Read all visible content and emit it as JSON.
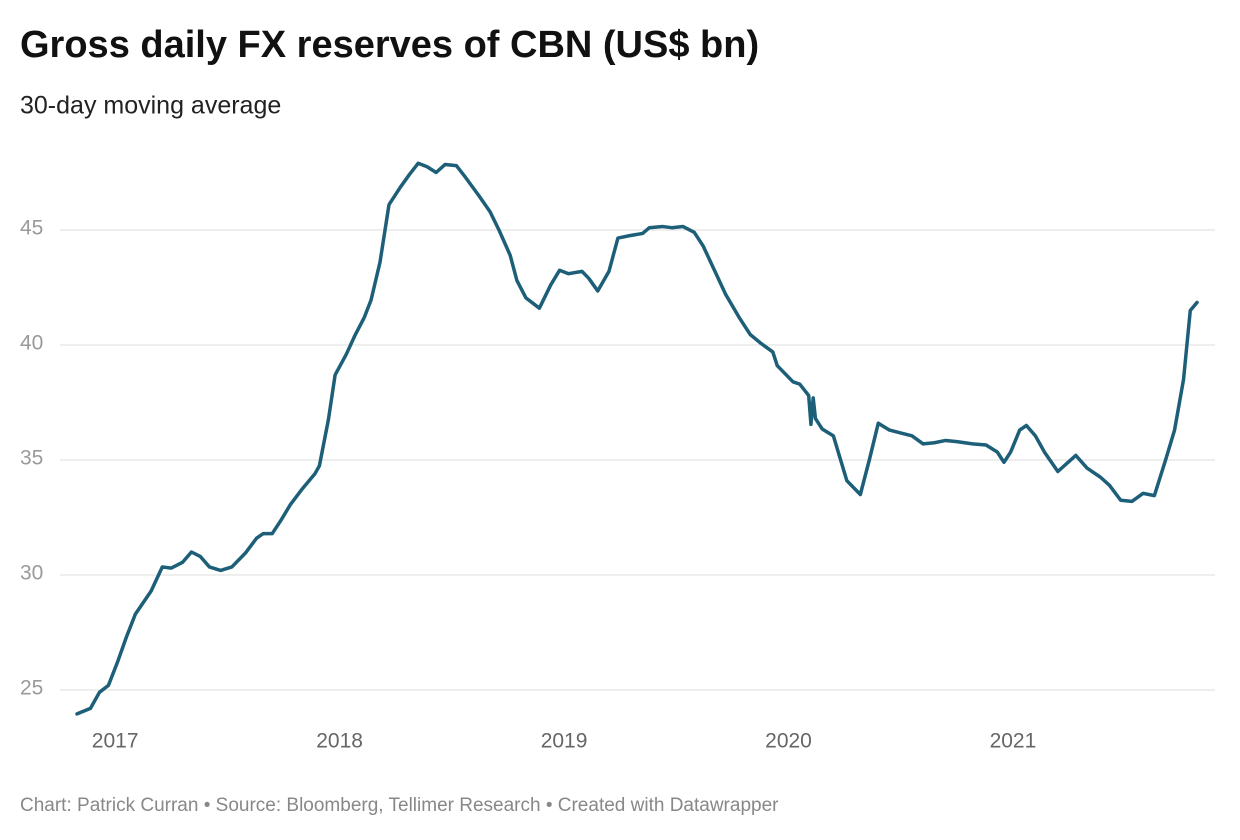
{
  "chart_data": {
    "type": "line",
    "title": "Gross daily FX reserves of CBN (US$ bn)",
    "subtitle": "30-day moving average",
    "source": "Chart: Patrick Curran • Source: Bloomberg, Tellimer Research • Created with Datawrapper",
    "x": [
      2016.83,
      2016.89,
      2016.93,
      2016.97,
      2017.01,
      2017.05,
      2017.09,
      2017.16,
      2017.21,
      2017.25,
      2017.3,
      2017.34,
      2017.38,
      2017.42,
      2017.47,
      2017.52,
      2017.58,
      2017.63,
      2017.66,
      2017.7,
      2017.74,
      2017.78,
      2017.83,
      2017.89,
      2017.91,
      2017.95,
      2017.98,
      2018.03,
      2018.07,
      2018.11,
      2018.14,
      2018.18,
      2018.22,
      2018.27,
      2018.31,
      2018.35,
      2018.39,
      2018.43,
      2018.47,
      2018.52,
      2018.56,
      2018.62,
      2018.67,
      2018.71,
      2018.76,
      2018.79,
      2018.83,
      2018.89,
      2018.94,
      2018.98,
      2019.02,
      2019.08,
      2019.11,
      2019.15,
      2019.2,
      2019.24,
      2019.29,
      2019.35,
      2019.38,
      2019.44,
      2019.48,
      2019.53,
      2019.58,
      2019.62,
      2019.67,
      2019.72,
      2019.78,
      2019.83,
      2019.88,
      2019.93,
      2019.95,
      2020.02,
      2020.05,
      2020.09,
      2020.1,
      2020.11,
      2020.12,
      2020.15,
      2020.2,
      2020.26,
      2020.32,
      2020.36,
      2020.4,
      2020.45,
      2020.51,
      2020.55,
      2020.6,
      2020.65,
      2020.7,
      2020.75,
      2020.82,
      2020.88,
      2020.93,
      2020.96,
      2020.99,
      2021.03,
      2021.06,
      2021.1,
      2021.14,
      2021.2,
      2021.24,
      2021.28,
      2021.33,
      2021.39,
      2021.43,
      2021.48,
      2021.53,
      2021.58,
      2021.63,
      2021.68,
      2021.72,
      2021.76,
      2021.79,
      2021.82
    ],
    "series": [
      {
        "name": "FX reserves",
        "color": "#1d5f78",
        "values": [
          23.96,
          24.2,
          24.9,
          25.2,
          26.2,
          27.3,
          28.3,
          29.3,
          30.35,
          30.3,
          30.55,
          31.0,
          30.8,
          30.35,
          30.2,
          30.35,
          30.95,
          31.6,
          31.8,
          31.8,
          32.4,
          33.05,
          33.7,
          34.4,
          34.75,
          36.75,
          38.7,
          39.6,
          40.45,
          41.2,
          41.95,
          43.6,
          46.1,
          46.85,
          47.4,
          47.9,
          47.75,
          47.5,
          47.85,
          47.8,
          47.3,
          46.5,
          45.8,
          45.0,
          43.9,
          42.8,
          42.05,
          41.6,
          42.6,
          43.25,
          43.1,
          43.2,
          42.9,
          42.35,
          43.2,
          44.65,
          44.75,
          44.85,
          45.1,
          45.15,
          45.1,
          45.15,
          44.9,
          44.3,
          43.25,
          42.2,
          41.2,
          40.45,
          40.05,
          39.7,
          39.1,
          38.4,
          38.3,
          37.8,
          36.55,
          37.7,
          36.8,
          36.35,
          36.05,
          34.1,
          33.5,
          35.0,
          36.6,
          36.3,
          36.15,
          36.05,
          35.7,
          35.75,
          35.85,
          35.8,
          35.7,
          35.65,
          35.35,
          34.9,
          35.35,
          36.3,
          36.5,
          36.05,
          35.35,
          34.5,
          34.85,
          35.2,
          34.65,
          34.25,
          33.9,
          33.25,
          33.2,
          33.55,
          33.45,
          35.0,
          36.3,
          38.5,
          41.5,
          41.85
        ]
      }
    ],
    "xlim": [
      2016.83,
      2021.82
    ],
    "xticks": [
      2017,
      2018,
      2019,
      2020,
      2021
    ],
    "ylim": [
      23.5,
      48.5
    ],
    "yticks": [
      25,
      30,
      35,
      40,
      45
    ],
    "grid": true
  }
}
